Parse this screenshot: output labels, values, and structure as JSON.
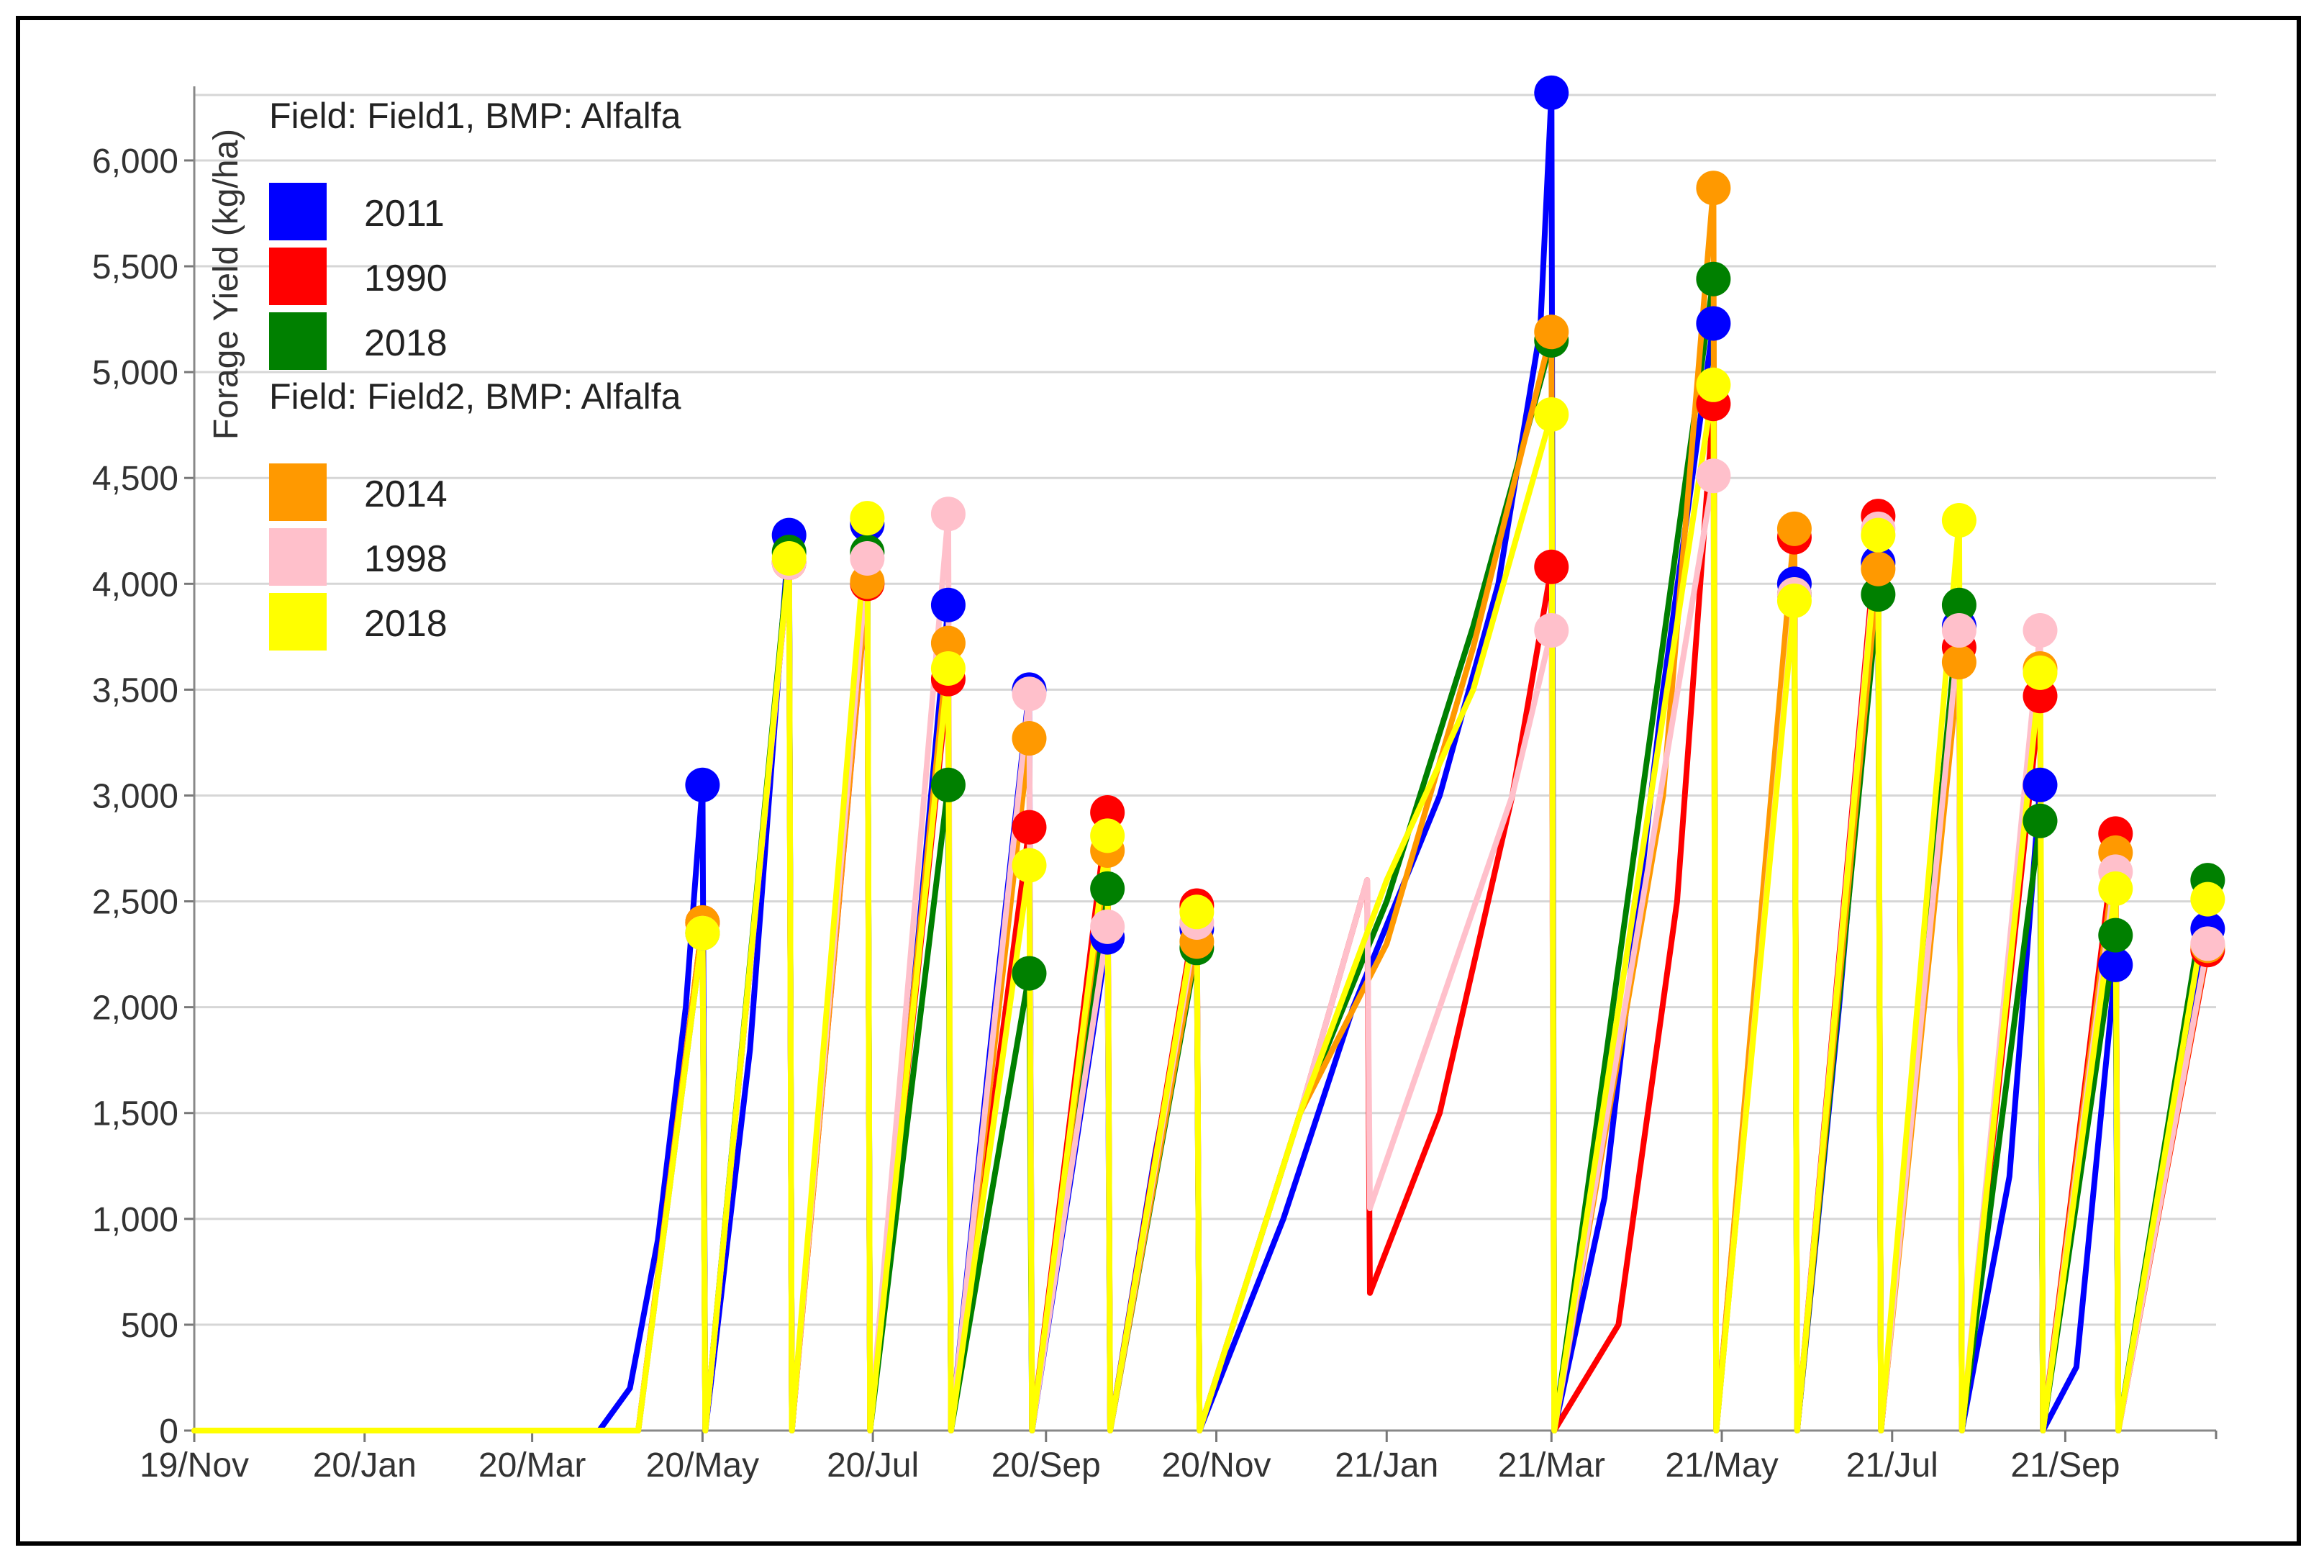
{
  "chart_data": {
    "type": "line",
    "ylabel": "Forage Yield (kg/ha)",
    "xlabel": "",
    "ylim": [
      0,
      6350
    ],
    "xlim": [
      "2019-11-01",
      "2021-10-25"
    ],
    "y_ticks": [
      0,
      500,
      1000,
      1500,
      2000,
      2500,
      3000,
      3500,
      4000,
      4500,
      5000,
      5500,
      6000
    ],
    "y_tick_labels": [
      "0",
      "500",
      "1,000",
      "1,500",
      "2,000",
      "2,500",
      "3,000",
      "3,500",
      "4,000",
      "4,500",
      "5,000",
      "5,500",
      "6,000"
    ],
    "x_ticks": [
      "2019-11-01",
      "2020-01-01",
      "2020-03-01",
      "2020-05-01",
      "2020-07-01",
      "2020-09-01",
      "2020-11-01",
      "2021-01-01",
      "2021-03-01",
      "2021-05-01",
      "2021-07-01",
      "2021-09-01"
    ],
    "x_tick_labels": [
      "19/Nov",
      "20/Jan",
      "20/Mar",
      "20/May",
      "20/Jul",
      "20/Sep",
      "20/Nov",
      "21/Jan",
      "21/Mar",
      "21/May",
      "21/Jul",
      "21/Sep"
    ],
    "grid": true,
    "legend_position": "top-left",
    "legend_groups": [
      {
        "title": "Field: Field1, BMP: Alfalfa",
        "items": [
          0,
          1,
          2
        ]
      },
      {
        "title": "Field: Field2, BMP: Alfalfa",
        "items": [
          3,
          4,
          5
        ]
      }
    ],
    "series": [
      {
        "name": "2011",
        "color": "#0000ff",
        "points": [
          [
            "2019-11-01",
            0
          ],
          [
            "2020-03-25",
            0
          ],
          [
            "2020-04-05",
            200
          ],
          [
            "2020-04-15",
            900
          ],
          [
            "2020-04-25",
            2000
          ],
          [
            "2020-05-01",
            3050
          ],
          [
            "2020-05-02",
            0
          ],
          [
            "2020-05-18",
            1800
          ],
          [
            "2020-06-01",
            4230
          ],
          [
            "2020-06-02",
            0
          ],
          [
            "2020-06-15",
            2000
          ],
          [
            "2020-06-29",
            4280
          ],
          [
            "2020-06-30",
            0
          ],
          [
            "2020-07-15",
            2000
          ],
          [
            "2020-07-28",
            3900
          ],
          [
            "2020-07-29",
            0
          ],
          [
            "2020-08-12",
            1800
          ],
          [
            "2020-08-26",
            3500
          ],
          [
            "2020-08-27",
            0
          ],
          [
            "2020-09-10",
            1200
          ],
          [
            "2020-09-23",
            2330
          ],
          [
            "2020-09-24",
            0
          ],
          [
            "2020-10-10",
            1300
          ],
          [
            "2020-10-25",
            2370
          ],
          [
            "2020-10-26",
            0
          ],
          [
            "2020-11-25",
            1000
          ],
          [
            "2020-12-20",
            2000
          ],
          [
            "2021-01-20",
            3000
          ],
          [
            "2021-02-10",
            4000
          ],
          [
            "2021-02-25",
            5200
          ],
          [
            "2021-03-01",
            6320
          ],
          [
            "2021-03-02",
            0
          ],
          [
            "2021-03-20",
            1100
          ],
          [
            "2021-04-10",
            3500
          ],
          [
            "2021-04-28",
            5230
          ],
          [
            "2021-04-29",
            0
          ],
          [
            "2021-05-13",
            2000
          ],
          [
            "2021-05-27",
            4000
          ],
          [
            "2021-05-28",
            0
          ],
          [
            "2021-06-12",
            2000
          ],
          [
            "2021-06-26",
            4100
          ],
          [
            "2021-06-27",
            0
          ],
          [
            "2021-07-11",
            1900
          ],
          [
            "2021-07-25",
            3800
          ],
          [
            "2021-07-26",
            0
          ],
          [
            "2021-08-12",
            1200
          ],
          [
            "2021-08-23",
            3050
          ],
          [
            "2021-08-24",
            0
          ],
          [
            "2021-09-05",
            300
          ],
          [
            "2021-09-19",
            2200
          ],
          [
            "2021-09-20",
            0
          ],
          [
            "2021-10-05",
            1200
          ],
          [
            "2021-10-22",
            2370
          ]
        ]
      },
      {
        "name": "1990",
        "color": "#ff0000",
        "points": [
          [
            "2019-11-01",
            0
          ],
          [
            "2020-04-08",
            0
          ],
          [
            "2020-05-01",
            2400
          ],
          [
            "2020-05-02",
            0
          ],
          [
            "2020-06-01",
            4100
          ],
          [
            "2020-06-02",
            0
          ],
          [
            "2020-06-29",
            4000
          ],
          [
            "2020-06-30",
            0
          ],
          [
            "2020-07-28",
            3550
          ],
          [
            "2020-07-29",
            0
          ],
          [
            "2020-08-26",
            2850
          ],
          [
            "2020-08-27",
            0
          ],
          [
            "2020-09-23",
            2920
          ],
          [
            "2020-09-24",
            0
          ],
          [
            "2020-10-25",
            2480
          ],
          [
            "2020-10-26",
            0
          ],
          [
            "2020-12-01",
            1500
          ],
          [
            "2020-12-25",
            2600
          ],
          [
            "2020-12-26",
            650
          ],
          [
            "2021-01-20",
            1500
          ],
          [
            "2021-02-15",
            3000
          ],
          [
            "2021-03-01",
            4080
          ],
          [
            "2021-03-02",
            0
          ],
          [
            "2021-03-25",
            500
          ],
          [
            "2021-04-15",
            2500
          ],
          [
            "2021-04-28",
            4850
          ],
          [
            "2021-04-29",
            0
          ],
          [
            "2021-05-27",
            4220
          ],
          [
            "2021-05-28",
            0
          ],
          [
            "2021-06-26",
            4320
          ],
          [
            "2021-06-27",
            0
          ],
          [
            "2021-07-25",
            3700
          ],
          [
            "2021-07-26",
            0
          ],
          [
            "2021-08-23",
            3470
          ],
          [
            "2021-08-24",
            0
          ],
          [
            "2021-09-19",
            2820
          ],
          [
            "2021-09-20",
            0
          ],
          [
            "2021-10-22",
            2270
          ]
        ]
      },
      {
        "name": "2018",
        "color": "#008000",
        "points": [
          [
            "2019-11-01",
            0
          ],
          [
            "2020-04-08",
            0
          ],
          [
            "2020-05-01",
            2350
          ],
          [
            "2020-05-02",
            0
          ],
          [
            "2020-06-01",
            4150
          ],
          [
            "2020-06-02",
            0
          ],
          [
            "2020-06-29",
            4150
          ],
          [
            "2020-06-30",
            0
          ],
          [
            "2020-07-28",
            3050
          ],
          [
            "2020-07-29",
            0
          ],
          [
            "2020-08-26",
            2160
          ],
          [
            "2020-08-27",
            0
          ],
          [
            "2020-09-23",
            2560
          ],
          [
            "2020-09-24",
            0
          ],
          [
            "2020-10-25",
            2280
          ],
          [
            "2020-10-26",
            0
          ],
          [
            "2020-12-01",
            1500
          ],
          [
            "2021-01-01",
            2500
          ],
          [
            "2021-02-01",
            3800
          ],
          [
            "2021-02-25",
            4950
          ],
          [
            "2021-03-01",
            5150
          ],
          [
            "2021-03-02",
            0
          ],
          [
            "2021-04-28",
            5440
          ],
          [
            "2021-04-29",
            0
          ],
          [
            "2021-05-27",
            3950
          ],
          [
            "2021-05-28",
            0
          ],
          [
            "2021-06-26",
            3950
          ],
          [
            "2021-06-27",
            0
          ],
          [
            "2021-07-25",
            3900
          ],
          [
            "2021-07-26",
            0
          ],
          [
            "2021-08-23",
            2880
          ],
          [
            "2021-08-24",
            0
          ],
          [
            "2021-09-19",
            2340
          ],
          [
            "2021-09-20",
            0
          ],
          [
            "2021-10-22",
            2600
          ]
        ]
      },
      {
        "name": "2014",
        "color": "#ff9900",
        "points": [
          [
            "2019-11-01",
            0
          ],
          [
            "2020-04-08",
            0
          ],
          [
            "2020-05-01",
            2400
          ],
          [
            "2020-05-02",
            0
          ],
          [
            "2020-06-01",
            4100
          ],
          [
            "2020-06-02",
            0
          ],
          [
            "2020-06-29",
            4010
          ],
          [
            "2020-06-30",
            0
          ],
          [
            "2020-07-28",
            3720
          ],
          [
            "2020-07-29",
            0
          ],
          [
            "2020-08-26",
            3270
          ],
          [
            "2020-08-27",
            0
          ],
          [
            "2020-09-23",
            2740
          ],
          [
            "2020-09-24",
            0
          ],
          [
            "2020-10-25",
            2310
          ],
          [
            "2020-10-26",
            0
          ],
          [
            "2020-12-01",
            1500
          ],
          [
            "2021-01-01",
            2300
          ],
          [
            "2021-02-01",
            3700
          ],
          [
            "2021-03-01",
            5190
          ],
          [
            "2021-03-02",
            0
          ],
          [
            "2021-04-10",
            3000
          ],
          [
            "2021-04-28",
            5870
          ],
          [
            "2021-04-29",
            0
          ],
          [
            "2021-05-27",
            4260
          ],
          [
            "2021-05-28",
            0
          ],
          [
            "2021-06-26",
            4070
          ],
          [
            "2021-06-27",
            0
          ],
          [
            "2021-07-25",
            3630
          ],
          [
            "2021-07-26",
            0
          ],
          [
            "2021-08-23",
            3600
          ],
          [
            "2021-08-24",
            0
          ],
          [
            "2021-09-19",
            2730
          ],
          [
            "2021-09-20",
            0
          ],
          [
            "2021-10-22",
            2290
          ]
        ]
      },
      {
        "name": "1998",
        "color": "#ffc0cb",
        "points": [
          [
            "2019-11-01",
            0
          ],
          [
            "2020-04-08",
            0
          ],
          [
            "2020-05-01",
            2350
          ],
          [
            "2020-05-02",
            0
          ],
          [
            "2020-06-01",
            4100
          ],
          [
            "2020-06-02",
            0
          ],
          [
            "2020-06-29",
            4120
          ],
          [
            "2020-06-30",
            0
          ],
          [
            "2020-07-28",
            4330
          ],
          [
            "2020-07-29",
            0
          ],
          [
            "2020-08-26",
            3480
          ],
          [
            "2020-08-27",
            0
          ],
          [
            "2020-09-23",
            2380
          ],
          [
            "2020-09-24",
            0
          ],
          [
            "2020-10-25",
            2400
          ],
          [
            "2020-10-26",
            0
          ],
          [
            "2020-12-01",
            1500
          ],
          [
            "2020-12-25",
            2600
          ],
          [
            "2020-12-26",
            1050
          ],
          [
            "2021-01-20",
            2000
          ],
          [
            "2021-02-15",
            3000
          ],
          [
            "2021-03-01",
            3780
          ],
          [
            "2021-03-02",
            0
          ],
          [
            "2021-04-28",
            4510
          ],
          [
            "2021-04-29",
            0
          ],
          [
            "2021-05-27",
            3950
          ],
          [
            "2021-05-28",
            0
          ],
          [
            "2021-06-26",
            4260
          ],
          [
            "2021-06-27",
            0
          ],
          [
            "2021-07-25",
            3780
          ],
          [
            "2021-07-26",
            0
          ],
          [
            "2021-08-23",
            3780
          ],
          [
            "2021-08-24",
            0
          ],
          [
            "2021-09-19",
            2640
          ],
          [
            "2021-09-20",
            0
          ],
          [
            "2021-10-22",
            2300
          ]
        ]
      },
      {
        "name": "2018",
        "color": "#ffff00",
        "points": [
          [
            "2019-11-01",
            0
          ],
          [
            "2020-04-08",
            0
          ],
          [
            "2020-05-01",
            2350
          ],
          [
            "2020-05-02",
            0
          ],
          [
            "2020-06-01",
            4120
          ],
          [
            "2020-06-02",
            0
          ],
          [
            "2020-06-29",
            4310
          ],
          [
            "2020-06-30",
            0
          ],
          [
            "2020-07-28",
            3600
          ],
          [
            "2020-07-29",
            0
          ],
          [
            "2020-08-26",
            2670
          ],
          [
            "2020-08-27",
            0
          ],
          [
            "2020-09-23",
            2810
          ],
          [
            "2020-09-24",
            0
          ],
          [
            "2020-10-25",
            2450
          ],
          [
            "2020-10-26",
            0
          ],
          [
            "2020-12-01",
            1500
          ],
          [
            "2021-01-01",
            2600
          ],
          [
            "2021-02-01",
            3500
          ],
          [
            "2021-03-01",
            4800
          ],
          [
            "2021-03-02",
            0
          ],
          [
            "2021-04-28",
            4940
          ],
          [
            "2021-04-29",
            0
          ],
          [
            "2021-05-27",
            3920
          ],
          [
            "2021-05-28",
            0
          ],
          [
            "2021-06-26",
            4230
          ],
          [
            "2021-06-27",
            0
          ],
          [
            "2021-07-25",
            4300
          ],
          [
            "2021-07-26",
            0
          ],
          [
            "2021-08-23",
            3580
          ],
          [
            "2021-08-24",
            0
          ],
          [
            "2021-09-19",
            2560
          ],
          [
            "2021-09-20",
            0
          ],
          [
            "2021-10-22",
            2510
          ]
        ]
      }
    ]
  }
}
